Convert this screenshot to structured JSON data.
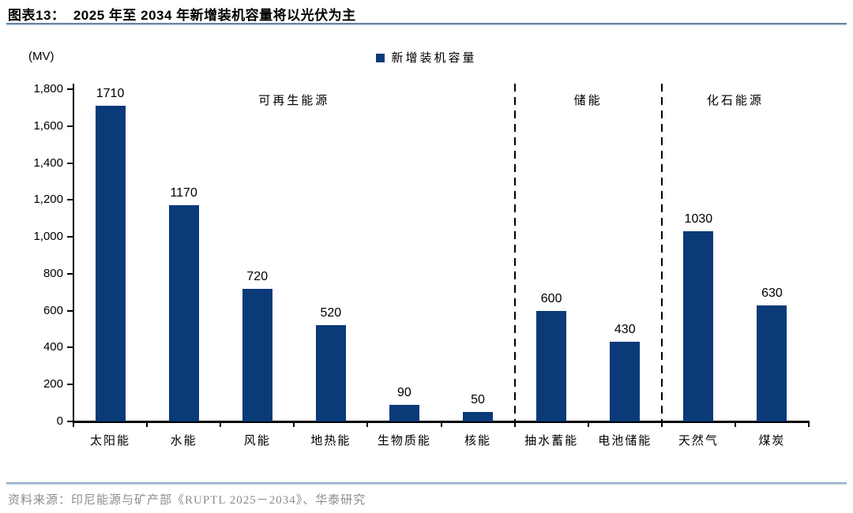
{
  "header": {
    "title": "图表13：  2025 年至 2034 年新增装机容量将以光伏为主"
  },
  "legend": {
    "label": "新增装机容量"
  },
  "footer": {
    "source": "资料来源：印尼能源与矿产部《RUPTL 2025－2034》、华泰研究"
  },
  "chart_data": {
    "type": "bar",
    "title": "2025 年至 2034 年新增装机容量将以光伏为主",
    "unit_label": "(MV)",
    "xlabel": "",
    "ylabel": "(MV)",
    "legend_entries": [
      "新增装机容量"
    ],
    "legend_position": "top-center",
    "categories": [
      "太阳能",
      "水能",
      "风能",
      "地热能",
      "生物质能",
      "核能",
      "抽水蓄能",
      "电池储能",
      "天然气",
      "煤炭"
    ],
    "values": [
      1710,
      1170,
      720,
      520,
      90,
      50,
      600,
      430,
      1030,
      630
    ],
    "groups": [
      {
        "label": "可再生能源",
        "span": [
          0,
          5
        ]
      },
      {
        "label": "储能",
        "span": [
          6,
          7
        ]
      },
      {
        "label": "化石能源",
        "span": [
          8,
          9
        ]
      }
    ],
    "ylim": [
      0,
      1800
    ],
    "ytick_step": 200,
    "grid": false,
    "bar_color": "#0a3a78",
    "separator_style": "dashed-black"
  }
}
